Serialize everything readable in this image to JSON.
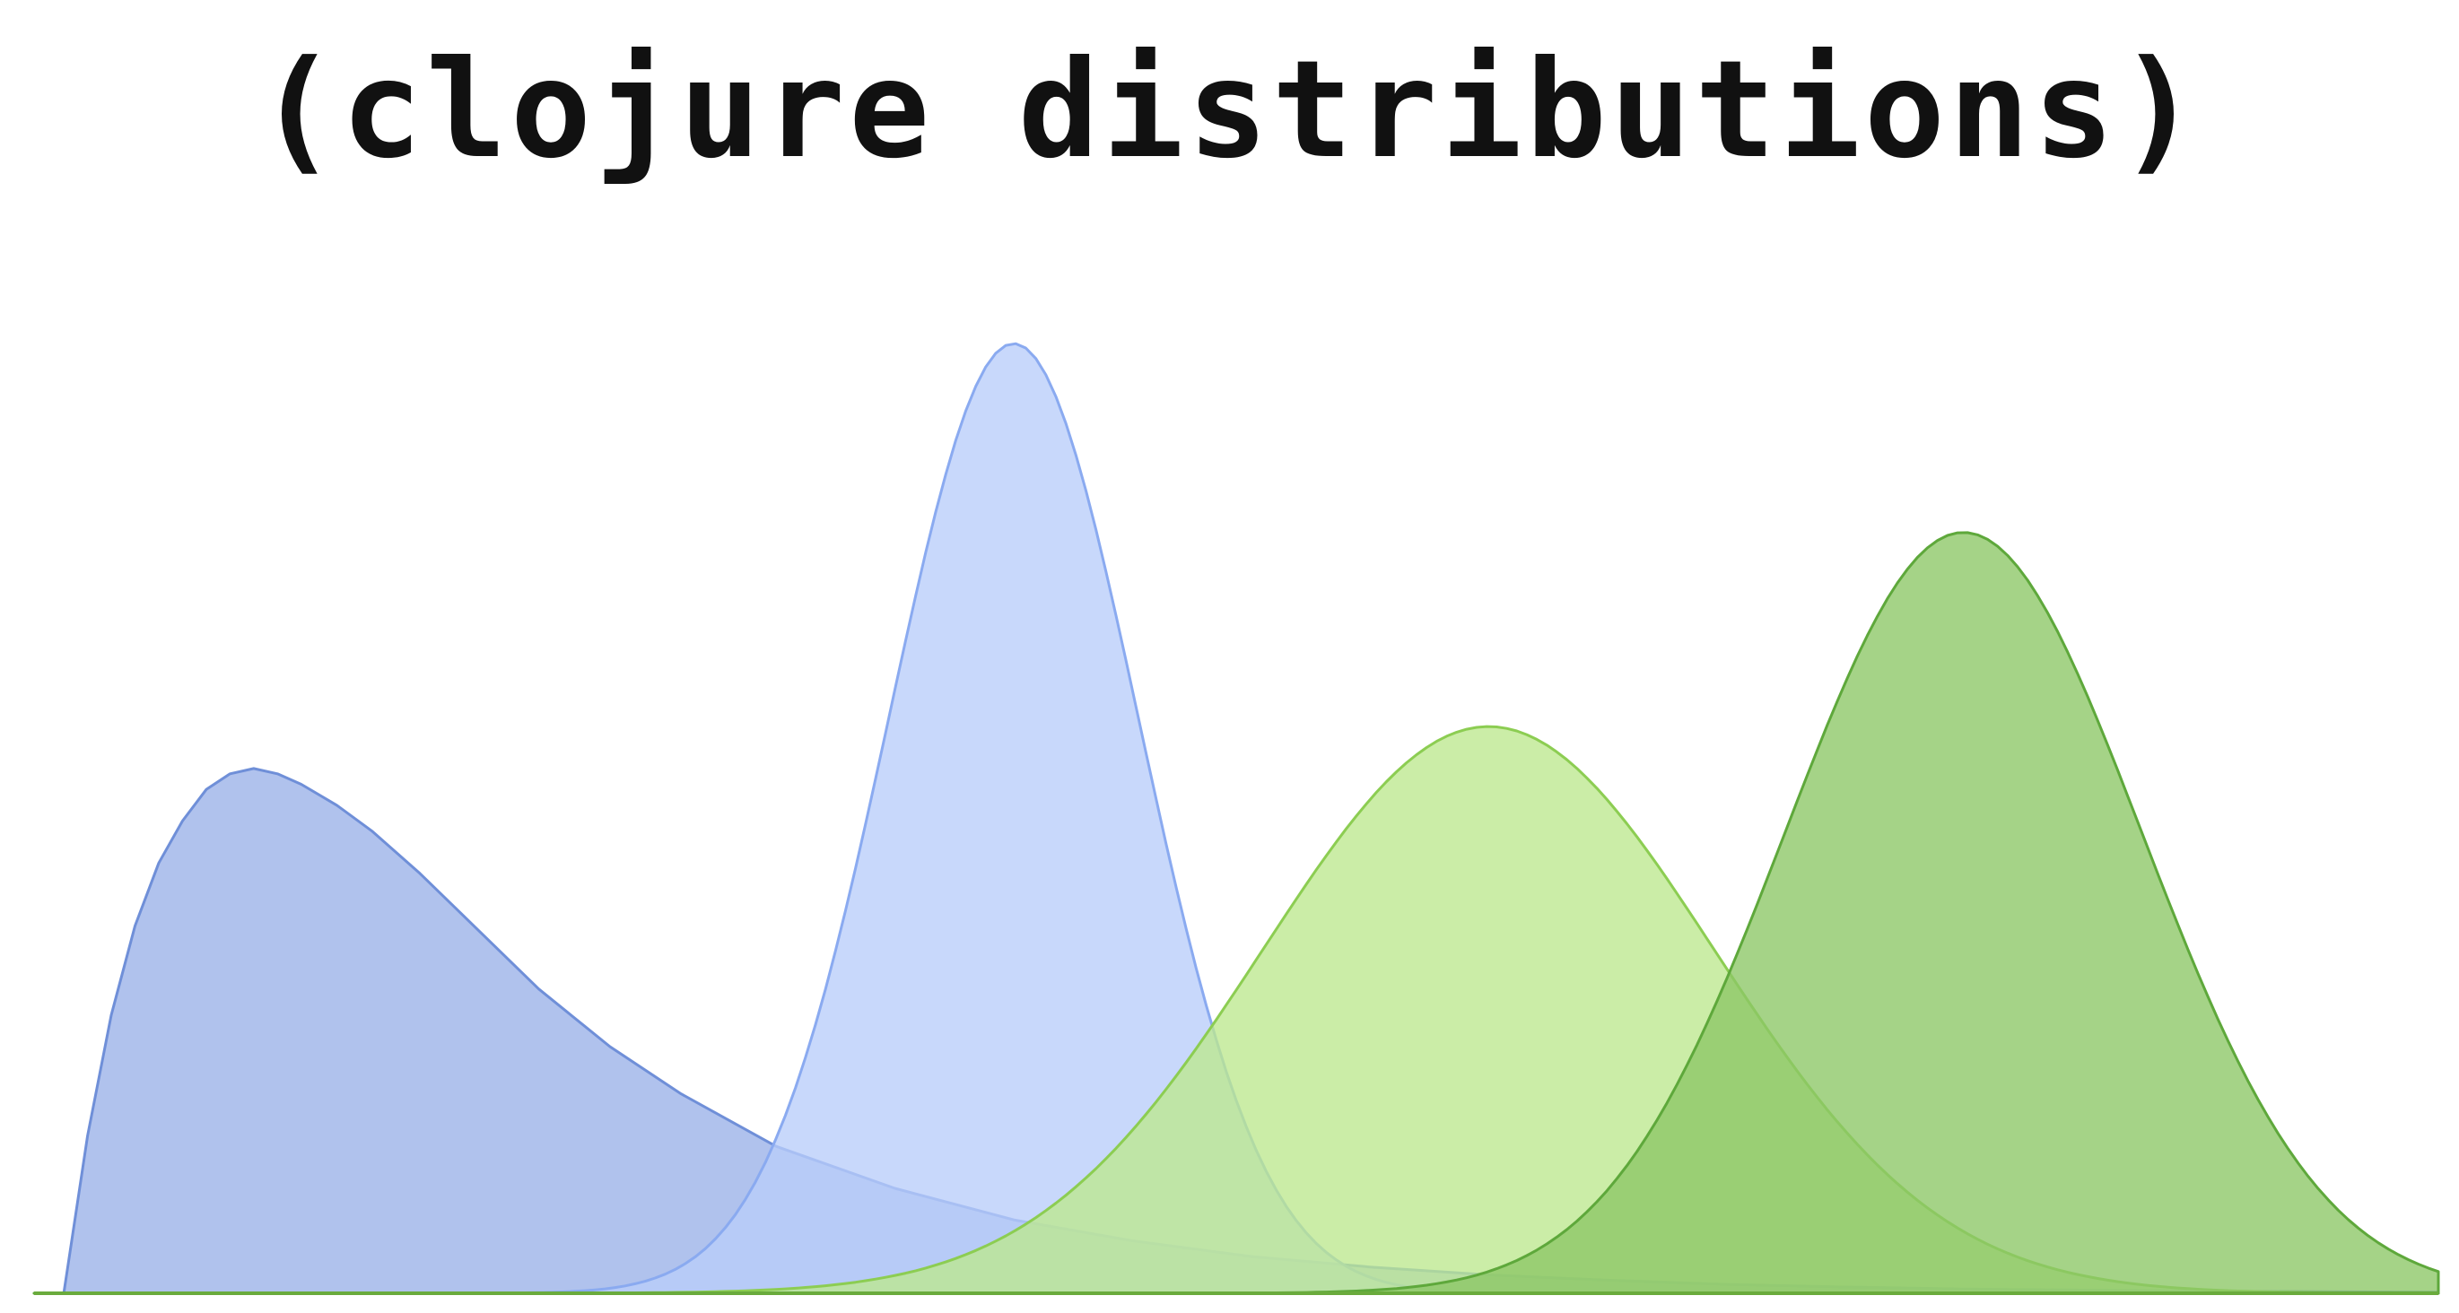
{
  "title": "(clojure distributions)",
  "chart_data": {
    "type": "area",
    "grid": false,
    "series": [
      {
        "distribution": "right-skewed (log-normal-like)",
        "fill": "#9ab1e8",
        "stroke": "#6f8fd8",
        "x": [
          0,
          0.2,
          0.4,
          0.6,
          0.8,
          1.0,
          1.2,
          1.4,
          1.6,
          1.8,
          2.0,
          2.3,
          2.6,
          3.0,
          3.5,
          4.0,
          4.6,
          5.2,
          6.0,
          7.0,
          8.0,
          9.0,
          10.0,
          11.0,
          12.0,
          13.0,
          14.0,
          15.0,
          16.0,
          18.0,
          20.0
        ],
        "y": [
          0,
          0.3,
          0.53,
          0.7,
          0.82,
          0.9,
          0.96,
          0.99,
          1.0,
          0.99,
          0.97,
          0.93,
          0.88,
          0.8,
          0.69,
          0.58,
          0.47,
          0.38,
          0.28,
          0.2,
          0.14,
          0.1,
          0.07,
          0.05,
          0.035,
          0.025,
          0.017,
          0.012,
          0.008,
          0.004,
          0.002
        ]
      },
      {
        "distribution": "narrow normal",
        "fill": "#b8cdfa",
        "stroke": "#8aaaf0",
        "mean": 8.0,
        "sd": 1.05,
        "peak": 1.81
      },
      {
        "distribution": "wide normal",
        "fill": "#bde88e",
        "stroke": "#8ccd52",
        "mean": 12.0,
        "sd": 1.9,
        "peak": 1.08
      },
      {
        "distribution": "normal",
        "fill": "#8cc765",
        "stroke": "#5ea83b",
        "mean": 16.0,
        "sd": 1.5,
        "peak": 1.45
      }
    ],
    "xlim": [
      -0.25,
      20.0
    ],
    "ylim": [
      0,
      1.81
    ]
  }
}
